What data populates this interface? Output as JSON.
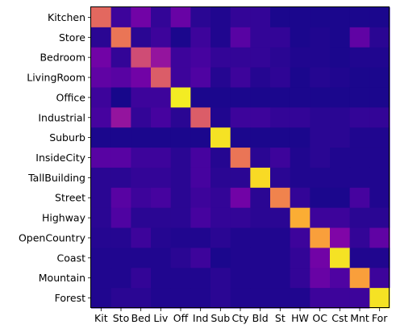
{
  "chart_data": {
    "type": "heatmap",
    "title": "",
    "xlabel": "",
    "ylabel": "",
    "row_labels": [
      "Kitchen",
      "Store",
      "Bedroom",
      "LivingRoom",
      "Office",
      "Industrial",
      "Suburb",
      "InsideCity",
      "TallBuilding",
      "Street",
      "Highway",
      "OpenCountry",
      "Coast",
      "Mountain",
      "Forest"
    ],
    "col_labels": [
      "Kit",
      "Sto",
      "Bed",
      "Liv",
      "Off",
      "Ind",
      "Sub",
      "Cty",
      "Bld",
      "St",
      "HW",
      "OC",
      "Cst",
      "Mnt",
      "For"
    ],
    "colormap": "plasma",
    "value_range": [
      0,
      1
    ],
    "values": [
      [
        0.62,
        0.1,
        0.22,
        0.08,
        0.2,
        0.06,
        0.04,
        0.08,
        0.08,
        0.03,
        0.03,
        0.03,
        0.03,
        0.03,
        0.03
      ],
      [
        0.06,
        0.66,
        0.06,
        0.1,
        0.03,
        0.1,
        0.04,
        0.16,
        0.08,
        0.08,
        0.03,
        0.04,
        0.03,
        0.18,
        0.06
      ],
      [
        0.22,
        0.08,
        0.52,
        0.32,
        0.1,
        0.12,
        0.08,
        0.08,
        0.08,
        0.06,
        0.04,
        0.04,
        0.03,
        0.04,
        0.04
      ],
      [
        0.18,
        0.16,
        0.22,
        0.58,
        0.1,
        0.14,
        0.05,
        0.1,
        0.05,
        0.07,
        0.03,
        0.05,
        0.04,
        0.03,
        0.03
      ],
      [
        0.1,
        0.02,
        0.1,
        0.1,
        0.97,
        0.03,
        0.03,
        0.03,
        0.03,
        0.03,
        0.03,
        0.03,
        0.03,
        0.03,
        0.03
      ],
      [
        0.12,
        0.32,
        0.08,
        0.12,
        0.06,
        0.58,
        0.04,
        0.1,
        0.1,
        0.08,
        0.08,
        0.06,
        0.06,
        0.08,
        0.08
      ],
      [
        0.03,
        0.03,
        0.03,
        0.03,
        0.03,
        0.03,
        0.95,
        0.03,
        0.03,
        0.03,
        0.03,
        0.06,
        0.06,
        0.04,
        0.04
      ],
      [
        0.16,
        0.16,
        0.1,
        0.1,
        0.06,
        0.12,
        0.05,
        0.66,
        0.06,
        0.1,
        0.04,
        0.06,
        0.04,
        0.04,
        0.04
      ],
      [
        0.06,
        0.06,
        0.08,
        0.08,
        0.06,
        0.12,
        0.06,
        0.06,
        0.93,
        0.06,
        0.04,
        0.04,
        0.04,
        0.04,
        0.04
      ],
      [
        0.06,
        0.16,
        0.1,
        0.12,
        0.06,
        0.1,
        0.08,
        0.22,
        0.06,
        0.7,
        0.08,
        0.03,
        0.03,
        0.12,
        0.04
      ],
      [
        0.06,
        0.14,
        0.06,
        0.06,
        0.06,
        0.12,
        0.08,
        0.08,
        0.06,
        0.06,
        0.82,
        0.1,
        0.1,
        0.06,
        0.06
      ],
      [
        0.05,
        0.05,
        0.1,
        0.05,
        0.04,
        0.04,
        0.06,
        0.04,
        0.04,
        0.04,
        0.1,
        0.78,
        0.26,
        0.08,
        0.18
      ],
      [
        0.04,
        0.04,
        0.04,
        0.04,
        0.06,
        0.1,
        0.03,
        0.04,
        0.04,
        0.04,
        0.08,
        0.22,
        0.95,
        0.04,
        0.04
      ],
      [
        0.04,
        0.04,
        0.08,
        0.04,
        0.04,
        0.04,
        0.06,
        0.04,
        0.04,
        0.04,
        0.08,
        0.2,
        0.14,
        0.78,
        0.1
      ],
      [
        0.04,
        0.06,
        0.06,
        0.04,
        0.04,
        0.04,
        0.06,
        0.04,
        0.04,
        0.04,
        0.04,
        0.1,
        0.1,
        0.1,
        0.95
      ]
    ]
  }
}
